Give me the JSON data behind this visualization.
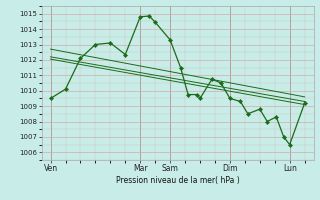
{
  "background_color": "#c8ede8",
  "grid_color": "#d4aaaa",
  "line_color": "#1a6b1a",
  "title": "Pression niveau de la mer( hPa )",
  "ylim": [
    1005.5,
    1015.5
  ],
  "yticks": [
    1006,
    1007,
    1008,
    1009,
    1010,
    1011,
    1012,
    1013,
    1014,
    1015
  ],
  "xtick_labels": [
    "Ven",
    "Mar",
    "Sam",
    "Dim",
    "Lun"
  ],
  "xtick_positions": [
    0,
    3,
    4,
    6,
    8
  ],
  "vline_positions": [
    0,
    3,
    4,
    6,
    8
  ],
  "xlim": [
    -0.3,
    8.8
  ],
  "main_x": [
    0,
    0.5,
    1.0,
    1.5,
    2.0,
    2.5,
    3.0,
    3.3,
    3.5,
    4.0,
    4.35,
    4.6,
    4.9,
    5.0,
    5.4,
    5.7,
    6.0,
    6.35,
    6.6,
    7.0,
    7.25,
    7.55,
    7.8,
    8.0,
    8.5
  ],
  "main_y": [
    1009.5,
    1010.1,
    1012.1,
    1013.0,
    1013.1,
    1012.35,
    1014.8,
    1014.85,
    1014.45,
    1013.3,
    1011.5,
    1009.75,
    1009.75,
    1009.5,
    1010.75,
    1010.5,
    1009.5,
    1009.3,
    1008.5,
    1008.8,
    1008.0,
    1008.3,
    1007.0,
    1006.5,
    1009.2
  ],
  "trend1_x": [
    0,
    8.5
  ],
  "trend1_y": [
    1012.7,
    1009.6
  ],
  "trend2_x": [
    0,
    8.5
  ],
  "trend2_y": [
    1012.2,
    1009.3
  ],
  "trend3_x": [
    0,
    8.5
  ],
  "trend3_y": [
    1012.05,
    1009.1
  ]
}
